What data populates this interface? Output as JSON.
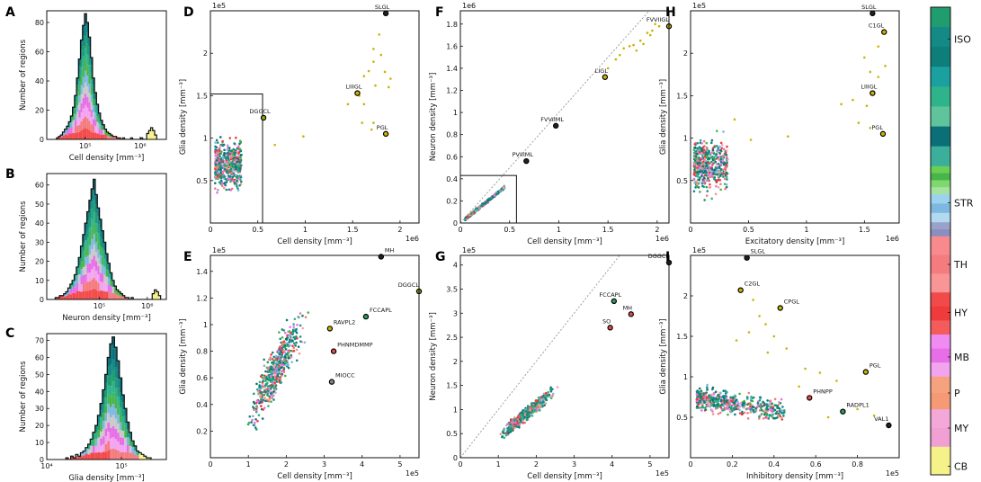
{
  "chart_data": [
    {
      "id": "A",
      "type": "histogram",
      "panel_label": "A",
      "xlabel": "Cell density [mm⁻³]",
      "ylabel": "Number of regions",
      "xscale": "log",
      "xlim": [
        20000,
        3000000
      ],
      "ylim": [
        0,
        88
      ],
      "xticks": [
        {
          "v": 100000,
          "label": "10⁵"
        },
        {
          "v": 1000000,
          "label": "10⁶"
        }
      ],
      "yticks": [
        {
          "v": 0,
          "label": "0"
        },
        {
          "v": 20,
          "label": "20"
        },
        {
          "v": 40,
          "label": "40"
        },
        {
          "v": 60,
          "label": "60"
        },
        {
          "v": 80,
          "label": "80"
        }
      ],
      "hist_range": [
        30000,
        2000000
      ],
      "counts": [
        1,
        2,
        3,
        5,
        7,
        9,
        12,
        16,
        22,
        30,
        42,
        55,
        68,
        78,
        86,
        80,
        70,
        56,
        42,
        32,
        24,
        18,
        13,
        10,
        7,
        5,
        4,
        3,
        2,
        2,
        1,
        1,
        0,
        1,
        0,
        0,
        0,
        1,
        0,
        0,
        0,
        0,
        1,
        0,
        0,
        4,
        6,
        8,
        6,
        3
      ]
    },
    {
      "id": "B",
      "type": "histogram",
      "panel_label": "B",
      "xlabel": "Neuron density [mm⁻³]",
      "ylabel": "Number of regions",
      "xscale": "log",
      "xlim": [
        8000,
        2500000
      ],
      "ylim": [
        0,
        66
      ],
      "xticks": [
        {
          "v": 100000,
          "label": "10⁵"
        },
        {
          "v": 1000000,
          "label": "10⁶"
        }
      ],
      "yticks": [
        {
          "v": 0,
          "label": "0"
        },
        {
          "v": 10,
          "label": "10"
        },
        {
          "v": 20,
          "label": "20"
        },
        {
          "v": 30,
          "label": "30"
        },
        {
          "v": 40,
          "label": "40"
        },
        {
          "v": 50,
          "label": "50"
        },
        {
          "v": 60,
          "label": "60"
        }
      ],
      "hist_range": [
        12000,
        1900000
      ],
      "counts": [
        1,
        1,
        2,
        2,
        3,
        4,
        6,
        8,
        10,
        13,
        17,
        22,
        28,
        34,
        40,
        46,
        52,
        58,
        63,
        55,
        48,
        42,
        36,
        30,
        24,
        19,
        14,
        10,
        7,
        5,
        4,
        3,
        2,
        1,
        1,
        0,
        1,
        0,
        0,
        0,
        0,
        0,
        0,
        0,
        0,
        0,
        3,
        5,
        4,
        2
      ]
    },
    {
      "id": "C",
      "type": "histogram",
      "panel_label": "C",
      "xlabel": "Glia density [mm⁻³]",
      "ylabel": "Number of regions",
      "xscale": "log",
      "xlim": [
        10000,
        400000
      ],
      "ylim": [
        0,
        74
      ],
      "xticks": [
        {
          "v": 10000,
          "label": "10⁴"
        },
        {
          "v": 100000,
          "label": "10⁵"
        }
      ],
      "yticks": [
        {
          "v": 0,
          "label": "0"
        },
        {
          "v": 10,
          "label": "10"
        },
        {
          "v": 20,
          "label": "20"
        },
        {
          "v": 30,
          "label": "30"
        },
        {
          "v": 40,
          "label": "40"
        },
        {
          "v": 50,
          "label": "50"
        },
        {
          "v": 60,
          "label": "60"
        },
        {
          "v": 70,
          "label": "70"
        }
      ],
      "hist_range": [
        18000,
        250000
      ],
      "counts": [
        1,
        0,
        2,
        1,
        3,
        2,
        4,
        5,
        7,
        9,
        12,
        16,
        20,
        26,
        33,
        41,
        50,
        60,
        68,
        72,
        66,
        58,
        48,
        38,
        30,
        22,
        16,
        11,
        8,
        5,
        4,
        3,
        2,
        1,
        1
      ]
    },
    {
      "id": "D",
      "type": "scatter",
      "panel_label": "D",
      "xlabel": "Cell density [mm⁻³]",
      "ylabel": "Glia density [mm⁻³]",
      "x_multiplier": "1e6",
      "y_multiplier": "1e5",
      "xlim": [
        0,
        2.2
      ],
      "ylim": [
        0,
        2.5
      ],
      "xticks": [
        0.0,
        0.5,
        1.0,
        1.5,
        2.0
      ],
      "yticks": [
        0.5,
        1.0,
        1.5,
        2.0
      ],
      "zoom_box": {
        "x": [
          0,
          0.55
        ],
        "y": [
          0,
          1.52
        ]
      },
      "annotations": [
        {
          "x": 1.85,
          "y": 2.47,
          "label": "SLGL",
          "color": "#222222"
        },
        {
          "x": 1.55,
          "y": 1.53,
          "label": "LIIIGL",
          "color": "#c8b400"
        },
        {
          "x": 1.85,
          "y": 1.05,
          "label": "PGL",
          "color": "#c8b400"
        },
        {
          "x": 0.56,
          "y": 1.24,
          "label": "DGGCL",
          "color": "#8aa800"
        }
      ],
      "outliers": [
        [
          1.78,
          2.22
        ],
        [
          1.72,
          2.05
        ],
        [
          1.8,
          1.98
        ],
        [
          1.72,
          1.9
        ],
        [
          1.67,
          1.79
        ],
        [
          1.84,
          1.78
        ],
        [
          1.74,
          1.62
        ],
        [
          1.88,
          1.6
        ],
        [
          1.57,
          1.5
        ],
        [
          1.45,
          1.4
        ],
        [
          1.62,
          1.4
        ],
        [
          1.6,
          1.18
        ],
        [
          1.72,
          1.18
        ],
        [
          1.7,
          1.1
        ],
        [
          0.68,
          0.92
        ],
        [
          0.98,
          1.02
        ],
        [
          1.62,
          1.73
        ],
        [
          1.9,
          1.7
        ]
      ],
      "cluster": {
        "x": [
          0.05,
          0.33
        ],
        "y": [
          0.12,
          1.25
        ],
        "n": 520
      }
    },
    {
      "id": "E",
      "type": "scatter",
      "panel_label": "E",
      "xlabel": "Cell density [mm⁻³]",
      "ylabel": "Glia density [mm⁻³]",
      "x_multiplier": "1e5",
      "y_multiplier": "1e5",
      "xlim": [
        0,
        5.5
      ],
      "ylim": [
        0,
        1.52
      ],
      "xticks": [
        0,
        1,
        2,
        3,
        4,
        5
      ],
      "yticks": [
        0.2,
        0.4,
        0.6,
        0.8,
        1.0,
        1.2,
        1.4
      ],
      "annotations": [
        {
          "x": 4.5,
          "y": 1.51,
          "label": "MH",
          "color": "#222222"
        },
        {
          "x": 5.5,
          "y": 1.25,
          "label": "DGGCL",
          "color": "#8aa800"
        },
        {
          "x": 4.1,
          "y": 1.06,
          "label": "FCCAPL",
          "color": "#2a9d5c"
        },
        {
          "x": 3.15,
          "y": 0.97,
          "label": "RAVPL2",
          "color": "#c8b400"
        },
        {
          "x": 3.25,
          "y": 0.8,
          "label": "PHNMDMMP",
          "color": "#e84a4a"
        },
        {
          "x": 3.2,
          "y": 0.57,
          "label": "MIOCC",
          "color": "#888888"
        }
      ],
      "cluster": {
        "x": [
          0.6,
          2.9
        ],
        "y": [
          0.1,
          1.23
        ],
        "n": 520
      }
    },
    {
      "id": "F",
      "type": "scatter",
      "panel_label": "F",
      "xlabel": "Cell density [mm⁻³]",
      "ylabel": "Neuron density [mm⁻³]",
      "x_multiplier": "1e6",
      "y_multiplier": "1e6",
      "xlim": [
        0,
        2.12
      ],
      "ylim": [
        0,
        1.92
      ],
      "xticks": [
        0.0,
        0.5,
        1.0,
        1.5,
        2.0
      ],
      "yticks": [
        0.0,
        0.2,
        0.4,
        0.6,
        0.8,
        1.0,
        1.2,
        1.4,
        1.6,
        1.8
      ],
      "zoom_box": {
        "x": [
          0,
          0.57
        ],
        "y": [
          0,
          0.43
        ]
      },
      "identity_line": true,
      "annotations": [
        {
          "x": 2.12,
          "y": 1.78,
          "label": "FVVIIGL",
          "color": "#c8b400"
        },
        {
          "x": 1.47,
          "y": 1.32,
          "label": "LIGL",
          "color": "#c8b400"
        },
        {
          "x": 0.97,
          "y": 0.88,
          "label": "FVVIIML",
          "color": "#222222"
        },
        {
          "x": 0.67,
          "y": 0.56,
          "label": "PVIIIML",
          "color": "#222222"
        }
      ],
      "outliers": [
        [
          1.5,
          1.4
        ],
        [
          1.58,
          1.48
        ],
        [
          1.62,
          1.52
        ],
        [
          1.66,
          1.58
        ],
        [
          1.72,
          1.6
        ],
        [
          1.76,
          1.61
        ],
        [
          1.83,
          1.65
        ],
        [
          1.9,
          1.72
        ],
        [
          1.95,
          1.74
        ],
        [
          2.02,
          1.78
        ],
        [
          1.86,
          1.62
        ],
        [
          1.79,
          1.56
        ],
        [
          1.93,
          1.7
        ],
        [
          1.98,
          1.8
        ]
      ],
      "cluster": {
        "x": [
          0.05,
          0.45
        ],
        "y": [
          0.02,
          0.34
        ],
        "n": 450
      }
    },
    {
      "id": "G",
      "type": "scatter",
      "panel_label": "G",
      "xlabel": "Cell density [mm⁻³]",
      "ylabel": "Neuron density [mm⁻³]",
      "x_multiplier": "1e5",
      "y_multiplier": "1e5",
      "xlim": [
        0,
        5.5
      ],
      "ylim": [
        0,
        4.2
      ],
      "xticks": [
        0,
        1,
        2,
        3,
        4,
        5
      ],
      "yticks": [
        0.0,
        0.5,
        1.0,
        1.5,
        2.0,
        2.5,
        3.0,
        3.5,
        4.0
      ],
      "identity_line": true,
      "annotations": [
        {
          "x": 5.5,
          "y": 4.05,
          "label": "DGGCL",
          "color": "#222222"
        },
        {
          "x": 4.05,
          "y": 3.25,
          "label": "FCCAPL",
          "color": "#2a9d5c"
        },
        {
          "x": 3.95,
          "y": 2.7,
          "label": "SO",
          "color": "#e84a4a"
        },
        {
          "x": 4.5,
          "y": 2.98,
          "label": "MH",
          "color": "#e84a4a"
        }
      ],
      "cluster": {
        "x": [
          0.6,
          2.9
        ],
        "y": [
          0.18,
          1.65
        ],
        "n": 520
      }
    },
    {
      "id": "H",
      "type": "scatter",
      "panel_label": "H",
      "xlabel": "Excitatory density [mm⁻³]",
      "ylabel": "Glia density [mm⁻³]",
      "x_multiplier": "1e6",
      "y_multiplier": "1e5",
      "xlim": [
        0,
        1.8
      ],
      "ylim": [
        0,
        2.5
      ],
      "xticks": [
        0.0,
        0.5,
        1.0,
        1.5
      ],
      "yticks": [
        0.5,
        1.0,
        1.5,
        2.0
      ],
      "annotations": [
        {
          "x": 1.57,
          "y": 2.47,
          "label": "SLGL",
          "color": "#222222"
        },
        {
          "x": 1.67,
          "y": 2.25,
          "label": "C1GL",
          "color": "#c8b400"
        },
        {
          "x": 1.57,
          "y": 1.53,
          "label": "LIIIGL",
          "color": "#c8b400"
        },
        {
          "x": 1.66,
          "y": 1.05,
          "label": "PGL",
          "color": "#c8b400"
        }
      ],
      "outliers": [
        [
          1.62,
          2.08
        ],
        [
          1.5,
          1.95
        ],
        [
          1.68,
          1.85
        ],
        [
          1.55,
          1.78
        ],
        [
          1.62,
          1.72
        ],
        [
          1.4,
          1.45
        ],
        [
          1.3,
          1.4
        ],
        [
          1.52,
          1.38
        ],
        [
          1.45,
          1.18
        ],
        [
          1.55,
          1.12
        ],
        [
          0.52,
          0.98
        ],
        [
          0.84,
          1.02
        ],
        [
          0.38,
          1.22
        ]
      ],
      "cluster": {
        "x": [
          0.03,
          0.32
        ],
        "y": [
          0.12,
          1.25
        ],
        "n": 520
      }
    },
    {
      "id": "I",
      "type": "scatter",
      "panel_label": "I",
      "xlabel": "Inhibitory density [mm⁻³]",
      "ylabel": "Glia density [mm⁻³]",
      "x_multiplier": "1e5",
      "y_multiplier": "1e5",
      "xlim": [
        0,
        1.0
      ],
      "ylim": [
        0,
        2.5
      ],
      "xticks": [
        0.0,
        0.2,
        0.4,
        0.6,
        0.8
      ],
      "yticks": [
        0.5,
        1.0,
        1.5,
        2.0
      ],
      "annotations": [
        {
          "x": 0.27,
          "y": 2.47,
          "label": "SLGL",
          "color": "#222222"
        },
        {
          "x": 0.24,
          "y": 2.07,
          "label": "C2GL",
          "color": "#c8b400"
        },
        {
          "x": 0.43,
          "y": 1.85,
          "label": "CPGL",
          "color": "#c8b400"
        },
        {
          "x": 0.84,
          "y": 1.06,
          "label": "PGL",
          "color": "#c8b400"
        },
        {
          "x": 0.57,
          "y": 0.74,
          "label": "PHNPP",
          "color": "#e84a4a"
        },
        {
          "x": 0.73,
          "y": 0.57,
          "label": "RADPL1",
          "color": "#2a9d5c"
        },
        {
          "x": 0.95,
          "y": 0.4,
          "label": "VAL1",
          "color": "#222222"
        }
      ],
      "outliers": [
        [
          0.3,
          1.95
        ],
        [
          0.33,
          1.75
        ],
        [
          0.36,
          1.65
        ],
        [
          0.28,
          1.55
        ],
        [
          0.4,
          1.5
        ],
        [
          0.22,
          1.45
        ],
        [
          0.46,
          1.35
        ],
        [
          0.37,
          1.3
        ],
        [
          0.55,
          1.1
        ],
        [
          0.62,
          1.05
        ],
        [
          0.7,
          0.95
        ],
        [
          0.52,
          0.88
        ],
        [
          0.8,
          0.6
        ],
        [
          0.88,
          0.52
        ],
        [
          0.66,
          0.5
        ]
      ],
      "cluster": {
        "x": [
          0.03,
          0.45
        ],
        "y": [
          0.3,
          1.2
        ],
        "n": 560
      }
    }
  ],
  "colorbar": {
    "labels": [
      {
        "text": "ISO",
        "pos": 0.068
      },
      {
        "text": "STR",
        "pos": 0.418
      },
      {
        "text": "TH",
        "pos": 0.55
      },
      {
        "text": "HY",
        "pos": 0.653
      },
      {
        "text": "MB",
        "pos": 0.748
      },
      {
        "text": "P",
        "pos": 0.825
      },
      {
        "text": "MY",
        "pos": 0.9
      },
      {
        "text": "CB",
        "pos": 0.982
      }
    ],
    "bands": [
      {
        "from": 0.0,
        "to": 0.34,
        "colors": [
          "#1f9d6e",
          "#138a86",
          "#0d7e7a",
          "#1ba0a0",
          "#2fb38b",
          "#5fc49c",
          "#0b6f77",
          "#3caf9a"
        ]
      },
      {
        "from": 0.34,
        "to": 0.4,
        "colors": [
          "#6bcf55",
          "#48b54b",
          "#7fd86e",
          "#a6e3a0"
        ]
      },
      {
        "from": 0.4,
        "to": 0.46,
        "colors": [
          "#9bd2ee",
          "#7eb8e0",
          "#b3d9f0"
        ]
      },
      {
        "from": 0.46,
        "to": 0.49,
        "colors": [
          "#9aa2c9",
          "#8a8fc0"
        ]
      },
      {
        "from": 0.49,
        "to": 0.61,
        "colors": [
          "#f88a8d",
          "#f47b7e",
          "#fa9597"
        ]
      },
      {
        "from": 0.61,
        "to": 0.7,
        "colors": [
          "#f24a4a",
          "#ef3b3b",
          "#f45b5b"
        ]
      },
      {
        "from": 0.7,
        "to": 0.79,
        "colors": [
          "#f08bf2",
          "#e86ee8",
          "#f3a4ef"
        ]
      },
      {
        "from": 0.79,
        "to": 0.86,
        "colors": [
          "#f7a27e",
          "#f59a74"
        ]
      },
      {
        "from": 0.86,
        "to": 0.94,
        "colors": [
          "#f4a8d8",
          "#f0a0d2"
        ]
      },
      {
        "from": 0.94,
        "to": 1.0,
        "colors": [
          "#f6f28a"
        ]
      }
    ]
  }
}
